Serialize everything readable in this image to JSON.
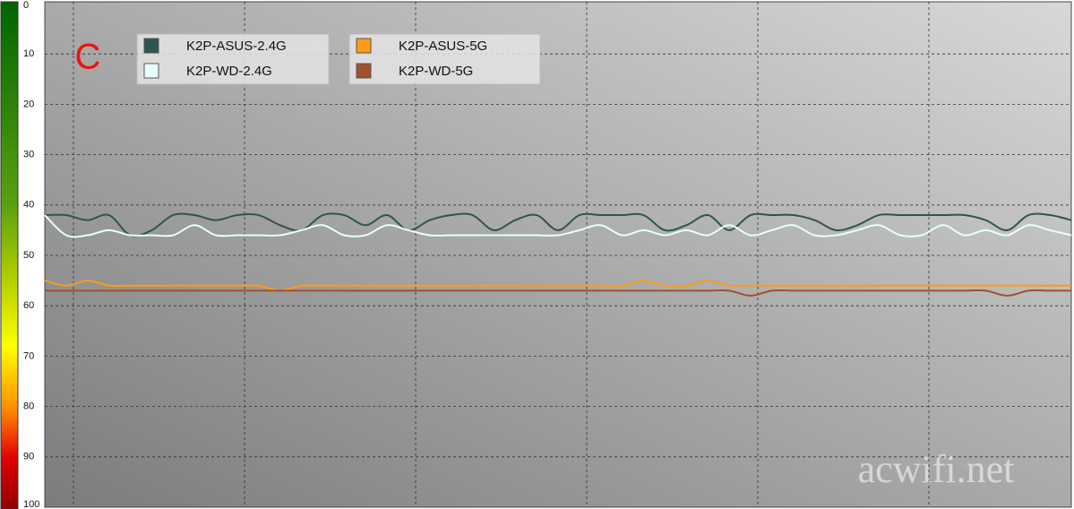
{
  "chart_data": {
    "type": "line",
    "annotation": "C",
    "watermark": "acwifi.net",
    "x": [
      0,
      1,
      2,
      3,
      4,
      5,
      6,
      7,
      8,
      9,
      10,
      11,
      12,
      13,
      14,
      15,
      16,
      17,
      18,
      19,
      20,
      21,
      22,
      23,
      24,
      25,
      26,
      27,
      28,
      29,
      30,
      31,
      32,
      33,
      34,
      35,
      36,
      37,
      38,
      39,
      40,
      41,
      42,
      43,
      44,
      45,
      46,
      47,
      48
    ],
    "xlim": [
      0,
      48
    ],
    "ylim": [
      0,
      100
    ],
    "yticks": [
      0,
      10,
      20,
      30,
      40,
      50,
      60,
      70,
      80,
      90,
      100
    ],
    "y_inverted": true,
    "grid": true,
    "legend": "upper left",
    "series": [
      {
        "name": "K2P-ASUS-2.4G",
        "color": "#2f5550",
        "values": [
          42,
          42,
          43,
          42,
          46,
          45,
          42,
          42,
          43,
          42,
          42,
          44,
          45,
          42,
          42,
          44,
          42,
          45,
          43,
          42,
          42,
          45,
          43,
          42,
          45,
          42,
          42,
          42,
          42,
          45,
          44,
          42,
          45,
          42,
          42,
          42,
          43,
          45,
          44,
          42,
          42,
          42,
          42,
          42,
          43,
          45,
          42,
          42,
          43
        ]
      },
      {
        "name": "K2P-WD-2.4G",
        "color": "#e8ffff",
        "values": [
          42,
          46,
          46,
          45,
          46,
          46,
          46,
          44,
          46,
          46,
          46,
          46,
          45,
          44,
          46,
          46,
          44,
          45,
          46,
          46,
          46,
          46,
          46,
          46,
          46,
          45,
          44,
          46,
          45,
          46,
          45,
          46,
          44,
          46,
          45,
          44,
          46,
          46,
          45,
          44,
          46,
          46,
          44,
          46,
          45,
          46,
          44,
          45,
          46
        ]
      },
      {
        "name": "K2P-ASUS-5G",
        "color": "#ff9a1a",
        "values": [
          55,
          56,
          55,
          56,
          56,
          56,
          56,
          56,
          56,
          56,
          56,
          57,
          56,
          56,
          56,
          56,
          56,
          56,
          56,
          56,
          56,
          56,
          56,
          56,
          56,
          56,
          56,
          56,
          55,
          56,
          56,
          55,
          56,
          56,
          56,
          56,
          56,
          56,
          56,
          56,
          56,
          56,
          56,
          56,
          56,
          56,
          56,
          56,
          56
        ]
      },
      {
        "name": "K2P-WD-5G",
        "color": "#a0522d",
        "values": [
          57,
          57,
          57,
          57,
          57,
          57,
          57,
          57,
          57,
          57,
          57,
          57,
          57,
          57,
          57,
          57,
          57,
          57,
          57,
          57,
          57,
          57,
          57,
          57,
          57,
          57,
          57,
          57,
          57,
          57,
          57,
          57,
          57,
          58,
          57,
          57,
          57,
          57,
          57,
          57,
          57,
          57,
          57,
          57,
          57,
          58,
          57,
          57,
          57
        ]
      }
    ]
  }
}
